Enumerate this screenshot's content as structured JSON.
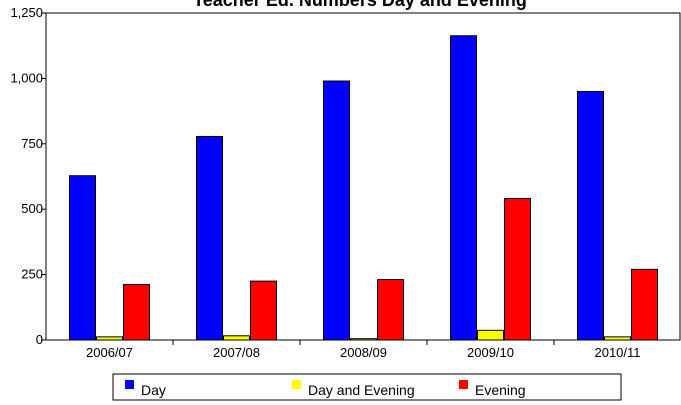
{
  "chart_data": {
    "type": "bar",
    "title": "Teacher Ed. Numbers Day and Evening",
    "xlabel": "",
    "ylabel": "",
    "ylim": [
      0,
      1250
    ],
    "yticks": [
      0,
      250,
      500,
      750,
      1000,
      1250
    ],
    "ytick_labels": [
      "0",
      "250",
      "500",
      "750",
      "1,000",
      "1,250"
    ],
    "categories": [
      "2006/07",
      "2007/08",
      "2008/09",
      "2009/10",
      "2010/11"
    ],
    "series": [
      {
        "name": "Day",
        "color": "#0000ff",
        "values": [
          628,
          778,
          990,
          1163,
          950
        ]
      },
      {
        "name": "Day and Evening",
        "color": "#ffff00",
        "values": [
          12,
          16,
          5,
          37,
          12
        ]
      },
      {
        "name": "Evening",
        "color": "#ff0000",
        "values": [
          212,
          225,
          231,
          541,
          270
        ]
      }
    ],
    "grid": false,
    "legend_position": "bottom"
  }
}
